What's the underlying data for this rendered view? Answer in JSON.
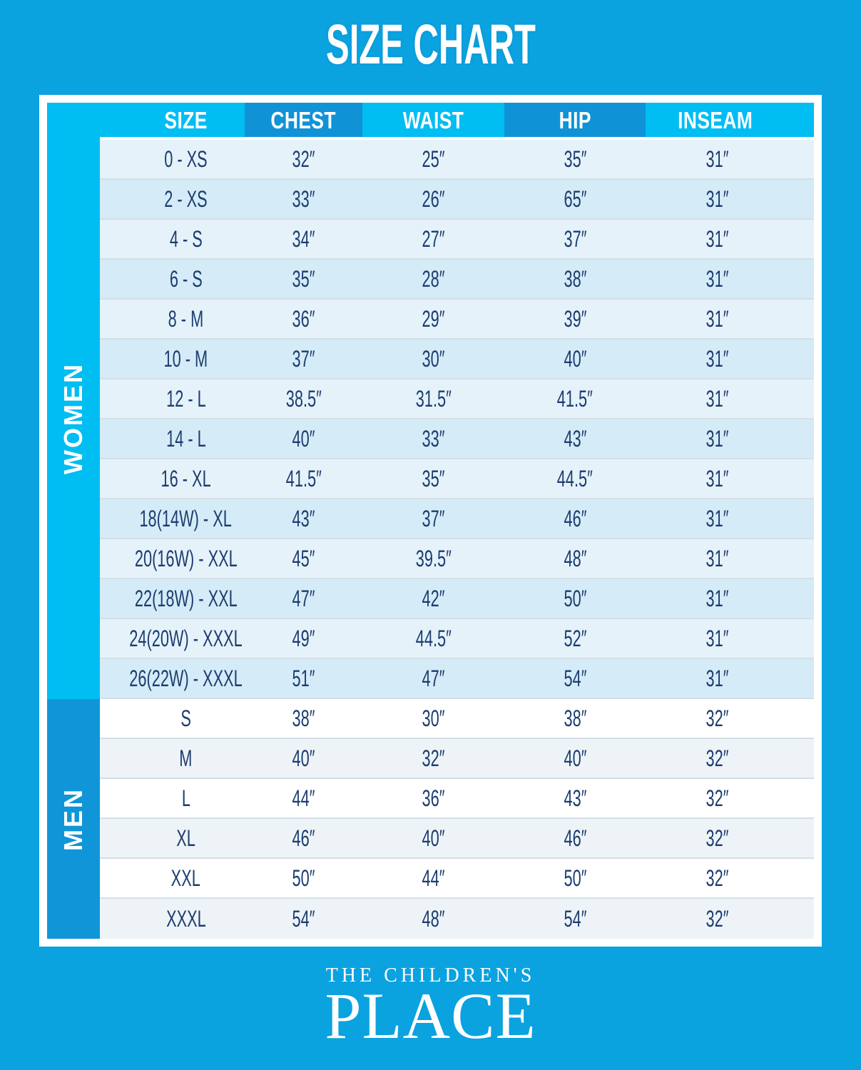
{
  "title": "SIZE CHART",
  "colors": {
    "page_background": "#0BA2E0",
    "header_light_cyan": "#00BDF2",
    "header_dark_blue": "#0F93D6",
    "women_band": "#00BDF2",
    "men_band": "#1095D8",
    "women_row_light": "#E5F2FA",
    "women_row_dark": "#D5EBF7",
    "men_row_light": "#FFFFFF",
    "men_row_dark": "#EDF3F7",
    "cell_text": "#1C3D6F",
    "frame_white": "#FFFFFF"
  },
  "table": {
    "columns": [
      "SIZE",
      "CHEST",
      "WAIST",
      "HIP",
      "INSEAM"
    ],
    "sections": [
      {
        "label": "WOMEN",
        "rows": [
          {
            "size": "0 - XS",
            "chest": "32″",
            "waist": "25″",
            "hip": "35″",
            "inseam": "31″"
          },
          {
            "size": "2 - XS",
            "chest": "33″",
            "waist": "26″",
            "hip": "65″",
            "inseam": "31″"
          },
          {
            "size": "4 - S",
            "chest": "34″",
            "waist": "27″",
            "hip": "37″",
            "inseam": "31″"
          },
          {
            "size": "6 - S",
            "chest": "35″",
            "waist": "28″",
            "hip": "38″",
            "inseam": "31″"
          },
          {
            "size": "8 - M",
            "chest": "36″",
            "waist": "29″",
            "hip": "39″",
            "inseam": "31″"
          },
          {
            "size": "10 - M",
            "chest": "37″",
            "waist": "30″",
            "hip": "40″",
            "inseam": "31″"
          },
          {
            "size": "12 - L",
            "chest": "38.5″",
            "waist": "31.5″",
            "hip": "41.5″",
            "inseam": "31″"
          },
          {
            "size": "14 - L",
            "chest": "40″",
            "waist": "33″",
            "hip": "43″",
            "inseam": "31″"
          },
          {
            "size": "16 - XL",
            "chest": "41.5″",
            "waist": "35″",
            "hip": "44.5″",
            "inseam": "31″"
          },
          {
            "size": "18(14W) - XL",
            "chest": "43″",
            "waist": "37″",
            "hip": "46″",
            "inseam": "31″"
          },
          {
            "size": "20(16W) - XXL",
            "chest": "45″",
            "waist": "39.5″",
            "hip": "48″",
            "inseam": "31″"
          },
          {
            "size": "22(18W) - XXL",
            "chest": "47″",
            "waist": "42″",
            "hip": "50″",
            "inseam": "31″"
          },
          {
            "size": "24(20W) - XXXL",
            "chest": "49″",
            "waist": "44.5″",
            "hip": "52″",
            "inseam": "31″"
          },
          {
            "size": "26(22W) - XXXL",
            "chest": "51″",
            "waist": "47″",
            "hip": "54″",
            "inseam": "31″"
          }
        ]
      },
      {
        "label": "MEN",
        "rows": [
          {
            "size": "S",
            "chest": "38″",
            "waist": "30″",
            "hip": "38″",
            "inseam": "32″"
          },
          {
            "size": "M",
            "chest": "40″",
            "waist": "32″",
            "hip": "40″",
            "inseam": "32″"
          },
          {
            "size": "L",
            "chest": "44″",
            "waist": "36″",
            "hip": "43″",
            "inseam": "32″"
          },
          {
            "size": "XL",
            "chest": "46″",
            "waist": "40″",
            "hip": "46″",
            "inseam": "32″"
          },
          {
            "size": "XXL",
            "chest": "50″",
            "waist": "44″",
            "hip": "50″",
            "inseam": "32″"
          },
          {
            "size": "XXXL",
            "chest": "54″",
            "waist": "48″",
            "hip": "54″",
            "inseam": "32″"
          }
        ]
      }
    ]
  },
  "footer": {
    "brand_top": "THE CHILDREN'S",
    "brand_main": "PLACE"
  }
}
